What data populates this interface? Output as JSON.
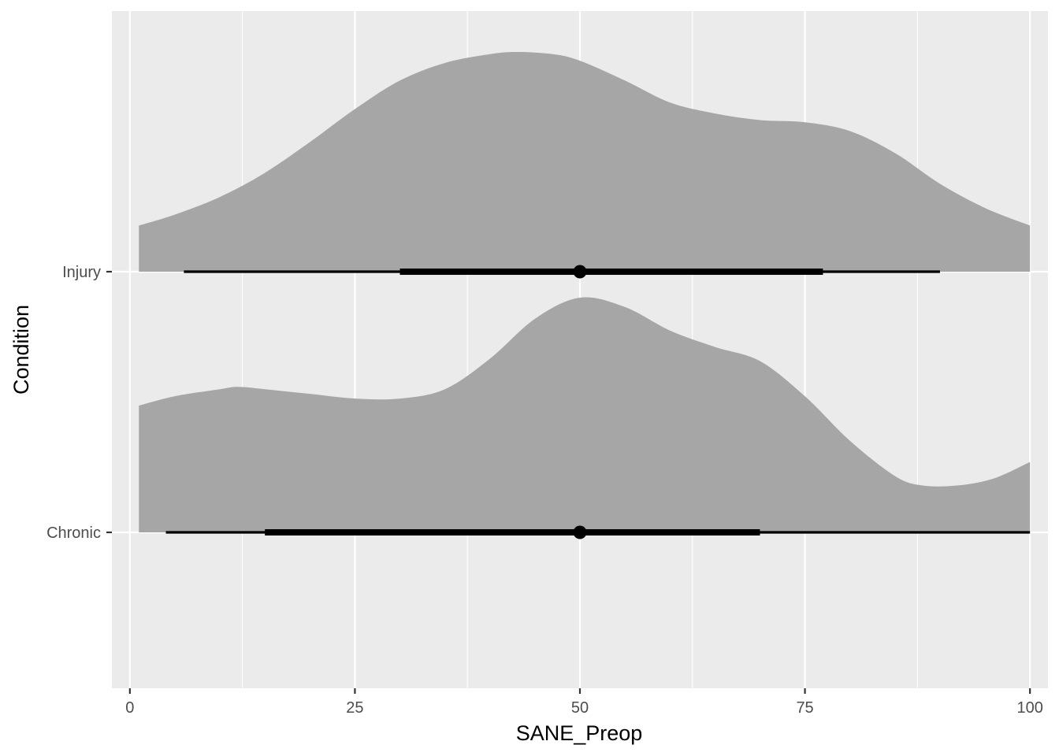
{
  "chart_data": {
    "type": "area",
    "subtype": "half-eye (density + point interval)",
    "title": "",
    "xlabel": "SANE_Preop",
    "ylabel": "Condition",
    "xlim": [
      -2,
      102
    ],
    "x_ticks": [
      0,
      25,
      50,
      75,
      100
    ],
    "x_tick_labels": [
      "0",
      "25",
      "50",
      "75",
      "100"
    ],
    "grid": true,
    "legend": "none",
    "colors": {
      "panel": "#ebebeb",
      "grid": "#ffffff",
      "density": "#a6a6a6",
      "interval": "#000000"
    },
    "categories": [
      "Chronic",
      "Injury"
    ],
    "series": [
      {
        "name": "Injury",
        "range": [
          1,
          100
        ],
        "density_x": [
          1,
          5,
          10,
          15,
          20,
          25,
          30,
          35,
          40,
          43,
          47,
          50,
          55,
          60,
          65,
          70,
          75,
          80,
          85,
          90,
          95,
          100
        ],
        "density_y": [
          0.21,
          0.26,
          0.34,
          0.45,
          0.59,
          0.74,
          0.87,
          0.95,
          0.99,
          1.0,
          0.99,
          0.96,
          0.87,
          0.77,
          0.72,
          0.69,
          0.68,
          0.64,
          0.54,
          0.4,
          0.29,
          0.21
        ],
        "point": 50,
        "interval_66": [
          30,
          77
        ],
        "interval_95": [
          6,
          90
        ]
      },
      {
        "name": "Chronic",
        "range": [
          1,
          100
        ],
        "density_x": [
          1,
          5,
          10,
          12,
          15,
          20,
          25,
          30,
          35,
          40,
          45,
          50,
          55,
          60,
          65,
          70,
          75,
          80,
          85,
          88,
          92,
          96,
          100
        ],
        "density_y": [
          0.54,
          0.58,
          0.61,
          0.62,
          0.61,
          0.59,
          0.57,
          0.57,
          0.61,
          0.74,
          0.91,
          1.0,
          0.96,
          0.86,
          0.79,
          0.73,
          0.58,
          0.39,
          0.24,
          0.2,
          0.2,
          0.23,
          0.3
        ],
        "point": 50,
        "interval_66": [
          15,
          70
        ],
        "interval_95": [
          4,
          100
        ]
      }
    ]
  }
}
